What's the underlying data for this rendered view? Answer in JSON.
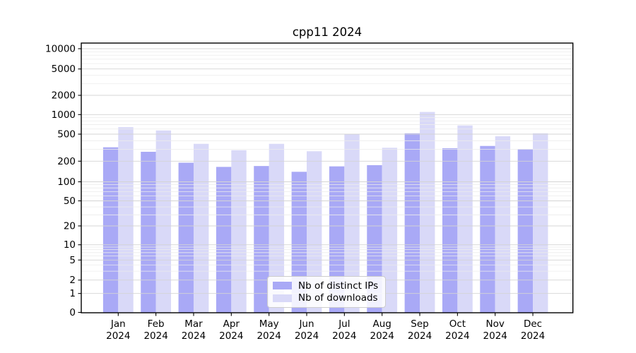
{
  "chart_data": {
    "type": "bar",
    "title": "cpp11 2024",
    "year": "2024",
    "categories": [
      "Jan",
      "Feb",
      "Mar",
      "Apr",
      "May",
      "Jun",
      "Jul",
      "Aug",
      "Sep",
      "Oct",
      "Nov",
      "Dec"
    ],
    "series": [
      {
        "name": "Nb of distinct IPs",
        "color": "#a9a9f6",
        "values": [
          320,
          275,
          190,
          165,
          170,
          140,
          168,
          175,
          515,
          310,
          335,
          300
        ]
      },
      {
        "name": "Nb of downloads",
        "color": "#d9d9f8",
        "values": [
          640,
          570,
          360,
          290,
          360,
          280,
          500,
          315,
          1100,
          680,
          465,
          515
        ]
      }
    ],
    "y_axis": {
      "scale": "symlog",
      "ticks": [
        10000,
        5000,
        2000,
        1000,
        500,
        200,
        100,
        50,
        20,
        10,
        5,
        2,
        1,
        0
      ]
    },
    "grid": true,
    "legend_position": "lower center"
  },
  "colors": {
    "axis": "#000000",
    "major_grid": "#d4d4d4",
    "minor_grid": "#ececec",
    "bar_dark": "#a9a9f6",
    "bar_light": "#d9d9f8"
  }
}
